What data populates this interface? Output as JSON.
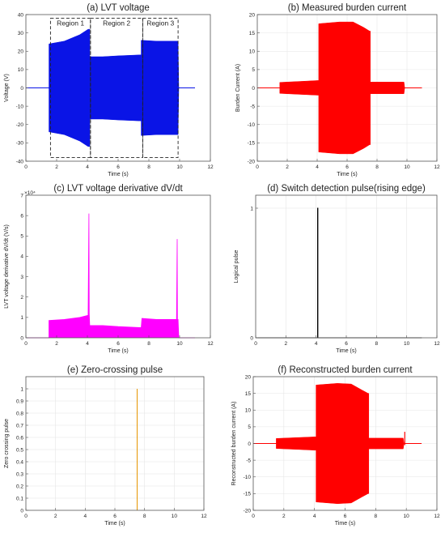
{
  "chart_data": [
    {
      "id": "a",
      "type": "line",
      "title": "(a) LVT voltage",
      "xlabel": "Time (s)",
      "ylabel": "Voltage (V)",
      "xlim": [
        0,
        12
      ],
      "ylim": [
        -40,
        40
      ],
      "xticks": [
        0,
        2,
        4,
        6,
        8,
        10,
        12
      ],
      "yticks": [
        -40,
        -30,
        -20,
        -10,
        0,
        10,
        20,
        30,
        40
      ],
      "color": "#0a14e6",
      "grid": false,
      "envelope": {
        "x": [
          1.5,
          1.5,
          2.5,
          3.5,
          4.05,
          4.15,
          4.15,
          5,
          6,
          7.4,
          7.5,
          7.5,
          8.5,
          9.9,
          9.95
        ],
        "max": [
          0,
          24,
          25.5,
          29,
          32,
          32,
          17,
          17,
          17.5,
          18,
          18,
          26,
          25.5,
          25.5,
          0
        ],
        "min": [
          0,
          -24,
          -25.5,
          -29,
          -32,
          -32,
          -17,
          -17,
          -17.5,
          -18,
          -18,
          -26,
          -25.5,
          -25.5,
          0
        ]
      },
      "baseline_range": [
        0,
        11
      ],
      "regions": [
        {
          "label": "Region 1",
          "x": [
            1.6,
            4.2
          ],
          "y": [
            -38,
            38
          ]
        },
        {
          "label": "Region 2",
          "x": [
            4.2,
            7.6
          ],
          "y": [
            -38,
            38
          ]
        },
        {
          "label": "Region 3",
          "x": [
            7.6,
            9.9
          ],
          "y": [
            -38,
            38
          ]
        }
      ]
    },
    {
      "id": "b",
      "type": "line",
      "title": "(b) Measured burden current",
      "xlabel": "Time (s)",
      "ylabel": "Burden Current (A)",
      "xlim": [
        0,
        12
      ],
      "ylim": [
        -20,
        20
      ],
      "xticks": [
        0,
        2,
        4,
        6,
        8,
        10,
        12
      ],
      "yticks": [
        -20,
        -15,
        -10,
        -5,
        0,
        5,
        10,
        15,
        20
      ],
      "color": "#ff0000",
      "grid": true,
      "envelope": {
        "x": [
          1.5,
          1.5,
          3.0,
          4.05,
          4.1,
          4.1,
          5.5,
          6.4,
          7.1,
          7.5,
          7.55,
          7.55,
          9.8,
          9.85
        ],
        "max": [
          0,
          1.5,
          1.8,
          2.0,
          2.0,
          17.5,
          18,
          18,
          16.5,
          15.5,
          15.5,
          1.6,
          1.6,
          0
        ],
        "min": [
          0,
          -1.5,
          -1.8,
          -2.0,
          -2.0,
          -17.5,
          -18,
          -18,
          -16.5,
          -15.5,
          -15.5,
          -1.6,
          -1.6,
          0
        ]
      },
      "baseline_range": [
        0,
        11
      ]
    },
    {
      "id": "c",
      "type": "line",
      "title": "(c) LVT voltage derivative dV/dt",
      "xlabel": "Time (s)",
      "ylabel": "LVT voltage derivative dV/dt (V/s)",
      "axis_multiplier": "×10⁴",
      "xlim": [
        0,
        12
      ],
      "ylim": [
        0,
        7
      ],
      "xticks": [
        0,
        2,
        4,
        6,
        8,
        10,
        12
      ],
      "yticks": [
        0,
        1,
        2,
        3,
        4,
        5,
        6,
        7
      ],
      "color": "#ff00ff",
      "grid": false,
      "upper": {
        "x": [
          0,
          1.5,
          1.5,
          2.5,
          3.5,
          4.05,
          4.1,
          4.12,
          4.15,
          4.2,
          5.0,
          6.0,
          7.4,
          7.5,
          7.55,
          8.5,
          9.8,
          9.84,
          9.86,
          9.9,
          9.95,
          11
        ],
        "y": [
          0,
          0,
          0.85,
          0.9,
          1.0,
          1.1,
          6.1,
          1.2,
          0.6,
          0.6,
          0.6,
          0.55,
          0.5,
          0.5,
          0.95,
          0.9,
          0.9,
          4.85,
          0.9,
          0.9,
          0,
          0
        ]
      },
      "fill_to_zero": true
    },
    {
      "id": "d",
      "type": "line",
      "title": "(d) Switch detection pulse(rising edge)",
      "xlabel": "Time (s)",
      "ylabel": "Logical pulse",
      "xlim": [
        0,
        12
      ],
      "ylim": [
        0,
        1.1
      ],
      "xticks": [
        0,
        2,
        4,
        6,
        8,
        10,
        12
      ],
      "yticks": [
        0,
        1
      ],
      "color": "#000000",
      "grid": true,
      "series": [
        {
          "x": [
            0,
            4.1,
            4.1,
            4.12,
            4.12,
            11
          ],
          "y": [
            0,
            0,
            1,
            1,
            0,
            0
          ]
        }
      ]
    },
    {
      "id": "e",
      "type": "line",
      "title": "(e) Zero-crossing pulse",
      "xlabel": "Time (s)",
      "ylabel": "Zero crossing pulse",
      "xlim": [
        0,
        12
      ],
      "ylim": [
        0,
        1.1
      ],
      "xticks": [
        0,
        2,
        4,
        6,
        8,
        10,
        12
      ],
      "yticks": [
        0,
        0.1,
        0.2,
        0.3,
        0.4,
        0.5,
        0.6,
        0.7,
        0.8,
        0.9,
        1
      ],
      "color": "#e69500",
      "grid": true,
      "series": [
        {
          "x": [
            7.5,
            7.5
          ],
          "y": [
            0,
            1
          ]
        }
      ]
    },
    {
      "id": "f",
      "type": "line",
      "title": "(f) Reconstructed burden current",
      "xlabel": "Time (s)",
      "ylabel": "Reconstructed burden current (A)",
      "xlim": [
        0,
        12
      ],
      "ylim": [
        -20,
        20
      ],
      "xticks": [
        0,
        2,
        4,
        6,
        8,
        10,
        12
      ],
      "yticks": [
        -20,
        -15,
        -10,
        -5,
        0,
        5,
        10,
        15,
        20
      ],
      "color": "#ff0000",
      "grid": true,
      "envelope": {
        "x": [
          1.5,
          1.5,
          3.0,
          4.05,
          4.1,
          4.1,
          5.5,
          6.4,
          7.1,
          7.5,
          7.55,
          7.55,
          9.8,
          9.85
        ],
        "max": [
          0,
          1.5,
          1.8,
          2.0,
          2.0,
          17.5,
          18,
          17.8,
          16.0,
          15.0,
          15.0,
          1.6,
          1.6,
          0
        ],
        "min": [
          0,
          -1.5,
          -1.8,
          -2.0,
          -2.0,
          -17.5,
          -18,
          -17.8,
          -16.0,
          -15.0,
          -15.0,
          -1.6,
          -1.6,
          0
        ]
      },
      "baseline_range": [
        0,
        11
      ],
      "spike": {
        "x": 9.9,
        "y": [
          -0.5,
          3.5
        ]
      }
    }
  ]
}
